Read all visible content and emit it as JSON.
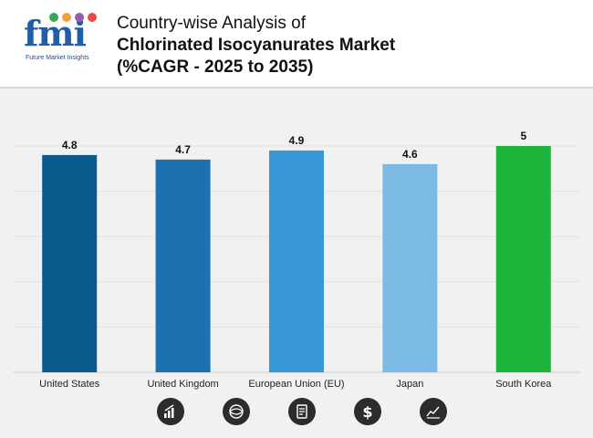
{
  "logo": {
    "text": "fmi",
    "subtitle": "Future Market Insights",
    "colors": {
      "text": "#1f5fa8",
      "dots": [
        "#3aa655",
        "#f2a03d",
        "#9b59b6",
        "#e84c3d"
      ]
    }
  },
  "title": {
    "line1": "Country-wise Analysis of",
    "line2": "Chlorinated Isocyanurates Market",
    "line3": "(%CAGR - 2025 to 2035)"
  },
  "chart_data": {
    "type": "bar",
    "title": "Country-wise Analysis of Chlorinated Isocyanurates Market (%CAGR - 2025 to 2035)",
    "categories": [
      "United States",
      "United Kingdom",
      "European Union (EU)",
      "Japan",
      "South Korea"
    ],
    "values": [
      4.8,
      4.7,
      4.9,
      4.6,
      5
    ],
    "value_labels": [
      "4.8",
      "4.7",
      "4.9",
      "4.6",
      "5"
    ],
    "colors": [
      "#0b5a8e",
      "#1c72b0",
      "#3897d6",
      "#7bbae2",
      "#1db43c"
    ],
    "xlabel": "",
    "ylabel": "",
    "ylim": [
      0,
      5
    ],
    "grid": true
  },
  "icons": [
    "bar-chart-icon",
    "globe-icon",
    "document-icon",
    "dollar-icon",
    "line-chart-icon"
  ]
}
